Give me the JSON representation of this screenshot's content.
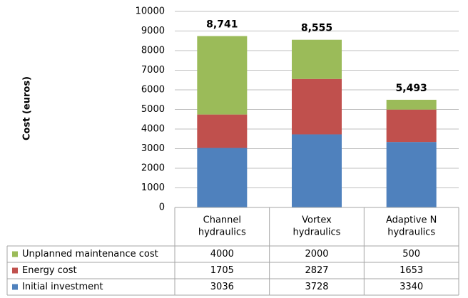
{
  "chart_data": {
    "type": "bar",
    "stacked": true,
    "ylabel": "Cost (euros)",
    "categories": [
      [
        "Channel",
        "hydraulics"
      ],
      [
        "Vortex",
        "hydraulics"
      ],
      [
        "Adaptive N",
        "hydraulics"
      ]
    ],
    "series": [
      {
        "name": "Initial investment",
        "color": "#4f81bd",
        "values": [
          3036,
          3728,
          3340
        ]
      },
      {
        "name": "Energy cost",
        "color": "#c0504d",
        "values": [
          1705,
          2827,
          1653
        ]
      },
      {
        "name": "Unplanned maintenance cost",
        "color": "#9bbb59",
        "values": [
          4000,
          2000,
          500
        ]
      }
    ],
    "totals": {
      "values": [
        8741,
        8555,
        5493
      ],
      "value_labels": [
        "8,741",
        "8,555",
        "5,493"
      ]
    },
    "ylim": [
      0,
      10000
    ],
    "yticks": [
      0,
      1000,
      2000,
      3000,
      4000,
      5000,
      6000,
      7000,
      8000,
      9000,
      10000
    ],
    "grid": true
  }
}
